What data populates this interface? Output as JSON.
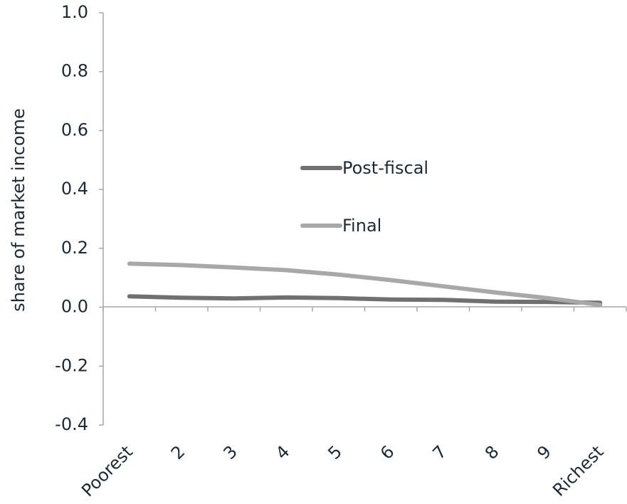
{
  "chart_data": {
    "type": "line",
    "title": "",
    "xlabel": "",
    "ylabel": "share of market income",
    "categories": [
      "Poorest",
      "2",
      "3",
      "4",
      "5",
      "6",
      "7",
      "8",
      "9",
      "Richest"
    ],
    "ylim": [
      -0.4,
      1.0
    ],
    "yticks": [
      "1.0",
      "0.8",
      "0.6",
      "0.4",
      "0.2",
      "0.0",
      "-0.2",
      "-0.4"
    ],
    "ytick_values": [
      1.0,
      0.8,
      0.6,
      0.4,
      0.2,
      0.0,
      -0.2,
      -0.4
    ],
    "grid": false,
    "legend_position": "center",
    "series": [
      {
        "name": "Post-fiscal",
        "color": "#707070",
        "values": [
          0.037,
          0.032,
          0.03,
          0.033,
          0.031,
          0.026,
          0.025,
          0.019,
          0.018,
          0.015
        ]
      },
      {
        "name": "Final",
        "color": "#a8a8a8",
        "values": [
          0.148,
          0.143,
          0.135,
          0.126,
          0.111,
          0.092,
          0.071,
          0.05,
          0.031,
          0.008
        ]
      }
    ]
  }
}
